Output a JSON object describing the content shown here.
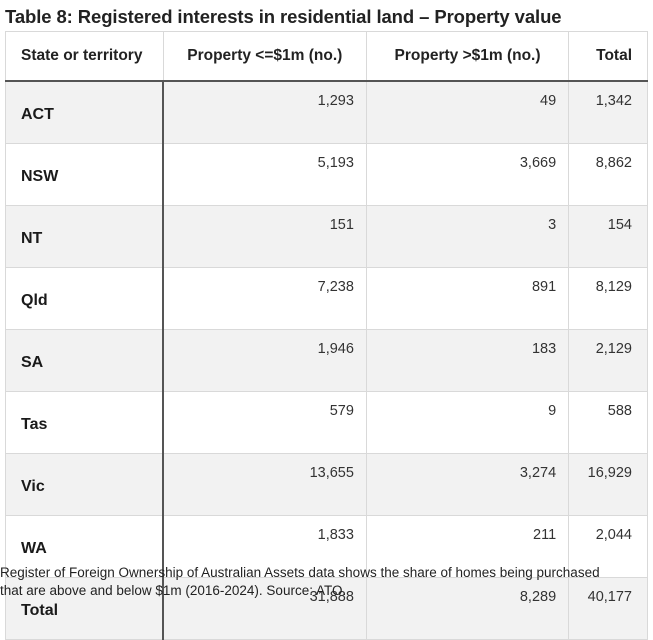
{
  "title": "Table 8: Registered interests in residential land – Property value",
  "table": {
    "headers": [
      "State or territory",
      "Property <=$1m (no.)",
      "Property >$1m (no.)",
      "Total"
    ],
    "rows": [
      [
        "ACT",
        "1,293",
        "49",
        "1,342"
      ],
      [
        "NSW",
        "5,193",
        "3,669",
        "8,862"
      ],
      [
        "NT",
        "151",
        "3",
        "154"
      ],
      [
        "Qld",
        "7,238",
        "891",
        "8,129"
      ],
      [
        "SA",
        "1,946",
        "183",
        "2,129"
      ],
      [
        "Tas",
        "579",
        "9",
        "588"
      ],
      [
        "Vic",
        "13,655",
        "3,274",
        "16,929"
      ],
      [
        "WA",
        "1,833",
        "211",
        "2,044"
      ],
      [
        "Total",
        "31,888",
        "8,289",
        "40,177"
      ]
    ]
  },
  "caption": {
    "line1": "Register of Foreign Ownership of Australian Assets data shows the share of homes being purchased",
    "line2": "that are above and below $1m (2016-2024). Source: ATO."
  }
}
